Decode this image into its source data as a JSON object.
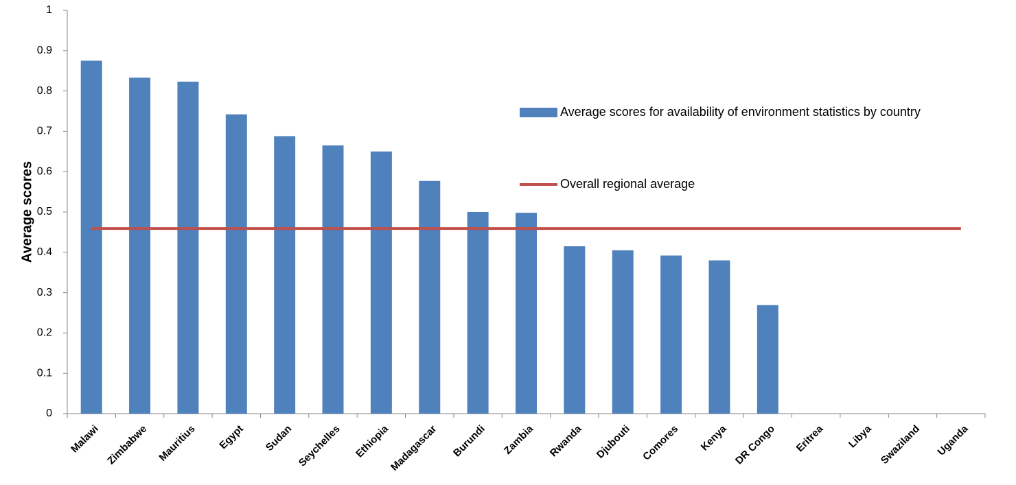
{
  "chart_data": {
    "type": "bar",
    "y_label": "Average scores",
    "categories": [
      "Malawi",
      "Zimbabwe",
      "Mauritius",
      "Egypt",
      "Sudan",
      "Seychelles",
      "Ethiopia",
      "Madagascar",
      "Burundi",
      "Zambia",
      "Rwanda",
      "Djubouti",
      "Comores",
      "Kenya",
      "DR Congo",
      "Eritrea",
      "Libya",
      "Swaziland",
      "Uganda"
    ],
    "series": [
      {
        "name": "Average scores for availability of environment statistics by country",
        "type": "bar",
        "color": "#4f81bd",
        "values": [
          0.875,
          0.833,
          0.823,
          0.742,
          0.688,
          0.665,
          0.65,
          0.577,
          0.5,
          0.498,
          0.415,
          0.405,
          0.392,
          0.38,
          0.269,
          0,
          0,
          0,
          0
        ]
      },
      {
        "name": "Overall regional average",
        "type": "line",
        "color": "#c0504d",
        "values": [
          0.459,
          0.459,
          0.459,
          0.459,
          0.459,
          0.459,
          0.459,
          0.459,
          0.459,
          0.459,
          0.459,
          0.459,
          0.459,
          0.459,
          0.459,
          0.459,
          0.459,
          0.459,
          0.459
        ]
      }
    ],
    "ylim": [
      0,
      1
    ],
    "yticks": [
      0,
      0.1,
      0.2,
      0.3,
      0.4,
      0.5,
      0.6,
      0.7,
      0.8,
      0.9,
      1
    ],
    "grid": false
  }
}
